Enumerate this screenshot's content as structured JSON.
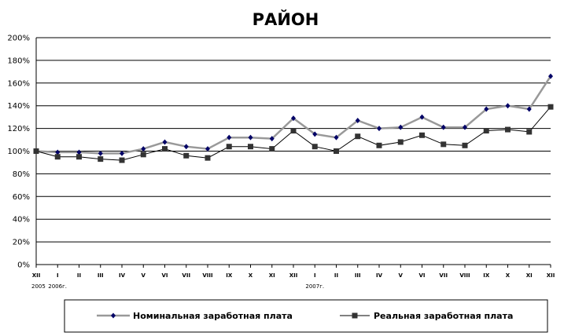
{
  "chart_data": {
    "type": "line",
    "title": "РАЙОН",
    "xlabel": "",
    "ylabel": "",
    "ylim": [
      0,
      200
    ],
    "yticks": [
      "0%",
      "20%",
      "40%",
      "60%",
      "80%",
      "100%",
      "120%",
      "140%",
      "160%",
      "180%",
      "200%"
    ],
    "categories": [
      "XII",
      "I",
      "II",
      "III",
      "IV",
      "V",
      "VI",
      "VII",
      "VIII",
      "IX",
      "X",
      "XI",
      "XII",
      "I",
      "II",
      "III",
      "IV",
      "V",
      "VI",
      "VII",
      "VIII",
      "IX",
      "X",
      "XI",
      "XII"
    ],
    "year_labels": [
      {
        "index": 0,
        "text": "2005"
      },
      {
        "index": 1,
        "text": "2006г."
      },
      {
        "index": 13,
        "text": "2007г."
      }
    ],
    "series": [
      {
        "name": "Номинальная заработная плата",
        "color": "#999999",
        "marker": "diamond",
        "marker_color": "#000066",
        "values": [
          100,
          99,
          99,
          98,
          98,
          102,
          108,
          104,
          102,
          112,
          112,
          111,
          129,
          115,
          112,
          127,
          120,
          121,
          130,
          121,
          121,
          137,
          140,
          137,
          166
        ]
      },
      {
        "name": "Реальная заработная плата",
        "color": "#000000",
        "marker": "square",
        "marker_color": "#333333",
        "values": [
          100,
          95,
          95,
          93,
          92,
          97,
          102,
          96,
          94,
          104,
          104,
          102,
          118,
          104,
          100,
          113,
          105,
          108,
          114,
          106,
          105,
          118,
          119,
          117,
          139
        ]
      }
    ],
    "grid": true,
    "legend_position": "bottom"
  }
}
